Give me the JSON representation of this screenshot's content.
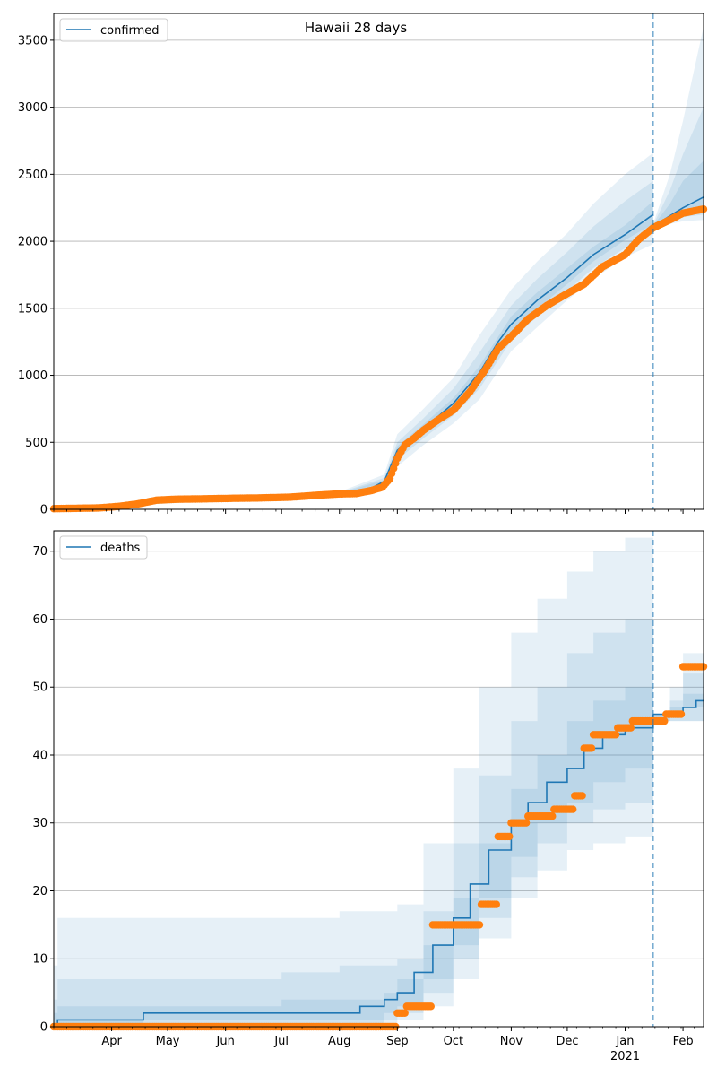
{
  "colors": {
    "model": "#1f77b4",
    "observed": "#ff7f0e",
    "band": "#1f77b4",
    "grid": "#b0b0b0"
  },
  "chart_data": [
    {
      "type": "line",
      "title": "Hawaii 28 days",
      "legend": {
        "label": "confirmed",
        "placement": "top-left"
      },
      "grid": "horizontal",
      "xlim": [
        "2020-03-01",
        "2021-02-12"
      ],
      "ylim": [
        0,
        3700
      ],
      "yticks": [
        0,
        500,
        1000,
        1500,
        2000,
        2500,
        3000,
        3500
      ],
      "forecast_start": "2021-01-16",
      "model_median": {
        "x": [
          "2020-03-01",
          "2020-04-01",
          "2020-05-01",
          "2020-06-01",
          "2020-07-01",
          "2020-07-20",
          "2020-08-01",
          "2020-08-15",
          "2020-08-25",
          "2020-09-01",
          "2020-09-15",
          "2020-10-01",
          "2020-10-15",
          "2020-10-25",
          "2020-11-01",
          "2020-11-15",
          "2020-12-01",
          "2020-12-15",
          "2021-01-01",
          "2021-01-16"
        ],
        "y": [
          5,
          20,
          70,
          82,
          88,
          100,
          115,
          135,
          210,
          440,
          600,
          790,
          1020,
          1250,
          1380,
          1560,
          1730,
          1900,
          2050,
          2200
        ]
      },
      "forecast_median": {
        "x": [
          "2021-01-16",
          "2021-01-25",
          "2021-02-01",
          "2021-02-12"
        ],
        "y": [
          2110,
          2190,
          2250,
          2330
        ]
      },
      "bands": [
        {
          "x": [
            "2020-03-01",
            "2020-08-01",
            "2020-08-25",
            "2020-09-01",
            "2020-09-15",
            "2020-10-01",
            "2020-10-15",
            "2020-11-01",
            "2020-11-15",
            "2020-12-01",
            "2020-12-15",
            "2021-01-01",
            "2021-01-16"
          ],
          "low": [
            0,
            110,
            170,
            320,
            480,
            640,
            820,
            1180,
            1360,
            1560,
            1720,
            1880,
            1980
          ],
          "high": [
            10,
            130,
            260,
            560,
            750,
            980,
            1300,
            1640,
            1850,
            2060,
            2280,
            2500,
            2660
          ]
        },
        {
          "x": [
            "2020-03-01",
            "2020-08-01",
            "2020-08-25",
            "2020-09-01",
            "2020-09-15",
            "2020-10-01",
            "2020-10-15",
            "2020-11-01",
            "2020-11-15",
            "2020-12-01",
            "2020-12-15",
            "2021-01-01",
            "2021-01-16"
          ],
          "low": [
            0,
            112,
            185,
            370,
            530,
            700,
            900,
            1260,
            1440,
            1630,
            1800,
            1950,
            2060
          ],
          "high": [
            8,
            124,
            235,
            500,
            680,
            900,
            1170,
            1520,
            1720,
            1920,
            2110,
            2300,
            2450
          ]
        },
        {
          "x": [
            "2020-03-01",
            "2020-08-01",
            "2020-08-25",
            "2020-09-01",
            "2020-09-15",
            "2020-10-01",
            "2020-10-15",
            "2020-11-01",
            "2020-11-15",
            "2020-12-01",
            "2020-12-15",
            "2021-01-01",
            "2021-01-16"
          ],
          "low": [
            2,
            114,
            195,
            405,
            565,
            750,
            970,
            1320,
            1500,
            1680,
            1850,
            2010,
            2130
          ],
          "high": [
            7,
            120,
            220,
            470,
            635,
            830,
            1070,
            1440,
            1620,
            1800,
            1960,
            2120,
            2300
          ]
        },
        {
          "x": [
            "2021-01-16",
            "2021-01-25",
            "2021-02-01",
            "2021-02-12"
          ],
          "low": [
            2090,
            2130,
            2150,
            2160
          ],
          "high": [
            2130,
            2500,
            2900,
            3600
          ]
        },
        {
          "x": [
            "2021-01-16",
            "2021-01-25",
            "2021-02-01",
            "2021-02-12"
          ],
          "low": [
            2095,
            2150,
            2180,
            2200
          ],
          "high": [
            2120,
            2380,
            2650,
            3000
          ]
        },
        {
          "x": [
            "2021-01-16",
            "2021-01-25",
            "2021-02-01",
            "2021-02-12"
          ],
          "low": [
            2100,
            2165,
            2210,
            2250
          ],
          "high": [
            2115,
            2280,
            2450,
            2600
          ]
        }
      ],
      "observed": {
        "x": [
          "2020-03-01",
          "2020-03-15",
          "2020-03-25",
          "2020-04-05",
          "2020-04-15",
          "2020-04-25",
          "2020-05-05",
          "2020-05-20",
          "2020-06-05",
          "2020-06-20",
          "2020-07-05",
          "2020-07-20",
          "2020-08-01",
          "2020-08-10",
          "2020-08-18",
          "2020-08-24",
          "2020-08-28",
          "2020-09-01",
          "2020-09-05",
          "2020-09-10",
          "2020-09-15",
          "2020-09-22",
          "2020-10-01",
          "2020-10-10",
          "2020-10-18",
          "2020-10-25",
          "2020-11-01",
          "2020-11-10",
          "2020-11-20",
          "2020-12-01",
          "2020-12-10",
          "2020-12-20",
          "2021-01-01",
          "2021-01-08",
          "2021-01-16",
          "2021-01-25",
          "2021-02-01",
          "2021-02-12"
        ],
        "y": [
          5,
          8,
          10,
          22,
          40,
          68,
          75,
          78,
          82,
          85,
          90,
          105,
          115,
          118,
          140,
          165,
          230,
          380,
          480,
          530,
          590,
          660,
          740,
          880,
          1040,
          1200,
          1290,
          1420,
          1520,
          1610,
          1680,
          1810,
          1900,
          2010,
          2100,
          2160,
          2210,
          2240
        ]
      }
    },
    {
      "type": "line",
      "legend": {
        "label": "deaths",
        "placement": "top-left"
      },
      "grid": "horizontal",
      "xlim": [
        "2020-03-01",
        "2021-02-12"
      ],
      "ylim": [
        0,
        73
      ],
      "yticks": [
        0,
        10,
        20,
        30,
        40,
        50,
        60,
        70
      ],
      "xticks": [
        "Apr",
        "May",
        "Jun",
        "Jul",
        "Aug",
        "Sep",
        "Oct",
        "Nov",
        "Dec",
        "Jan",
        "Feb"
      ],
      "xtick_dates": [
        "2020-04-01",
        "2020-05-01",
        "2020-06-01",
        "2020-07-01",
        "2020-08-01",
        "2020-09-01",
        "2020-10-01",
        "2020-11-01",
        "2020-12-01",
        "2021-01-01",
        "2021-02-01"
      ],
      "year_label": "2021",
      "forecast_start": "2021-01-16",
      "model_median": {
        "x": [
          "2020-03-01",
          "2020-03-03",
          "2020-04-18",
          "2020-08-12",
          "2020-08-25",
          "2020-09-01",
          "2020-09-10",
          "2020-09-20",
          "2020-10-01",
          "2020-10-10",
          "2020-10-20",
          "2020-11-01",
          "2020-11-10",
          "2020-11-20",
          "2020-12-01",
          "2020-12-10",
          "2020-12-20",
          "2021-01-01",
          "2021-01-16"
        ],
        "y": [
          0,
          1,
          2,
          3,
          4,
          5,
          8,
          12,
          16,
          21,
          26,
          30,
          33,
          36,
          38,
          41,
          43,
          44,
          46
        ]
      },
      "forecast_median": {
        "x": [
          "2021-01-16",
          "2021-01-25",
          "2021-02-01",
          "2021-02-08",
          "2021-02-12"
        ],
        "y": [
          46,
          46,
          47,
          48,
          48
        ]
      },
      "bands": [
        {
          "x": [
            "2020-03-01",
            "2020-03-03",
            "2020-04-18",
            "2020-07-01",
            "2020-08-01",
            "2020-08-25",
            "2020-09-01",
            "2020-09-15",
            "2020-10-01",
            "2020-10-15",
            "2020-11-01",
            "2020-11-15",
            "2020-12-01",
            "2020-12-15",
            "2021-01-01",
            "2021-01-16"
          ],
          "low": [
            0,
            0,
            0,
            0,
            0,
            0,
            1,
            3,
            7,
            13,
            19,
            23,
            26,
            27,
            28,
            28
          ],
          "high": [
            9,
            16,
            16,
            16,
            17,
            17,
            18,
            27,
            38,
            50,
            58,
            63,
            67,
            70,
            72,
            73
          ]
        },
        {
          "x": [
            "2020-03-01",
            "2020-03-03",
            "2020-04-18",
            "2020-07-01",
            "2020-08-01",
            "2020-08-25",
            "2020-09-01",
            "2020-09-15",
            "2020-10-01",
            "2020-10-15",
            "2020-11-01",
            "2020-11-15",
            "2020-12-01",
            "2020-12-15",
            "2021-01-01",
            "2021-01-16"
          ],
          "low": [
            0,
            0,
            0,
            0,
            0,
            1,
            2,
            5,
            10,
            16,
            22,
            27,
            30,
            32,
            33,
            34
          ],
          "high": [
            4,
            7,
            7,
            8,
            9,
            9,
            10,
            17,
            27,
            37,
            45,
            50,
            55,
            58,
            60,
            61
          ]
        },
        {
          "x": [
            "2020-03-01",
            "2020-03-03",
            "2020-04-18",
            "2020-07-01",
            "2020-08-01",
            "2020-08-25",
            "2020-09-01",
            "2020-09-15",
            "2020-10-01",
            "2020-10-15",
            "2020-11-01",
            "2020-11-15",
            "2020-12-01",
            "2020-12-15",
            "2021-01-01",
            "2021-01-16"
          ],
          "low": [
            0,
            0,
            1,
            1,
            1,
            2,
            3,
            7,
            12,
            19,
            25,
            30,
            33,
            36,
            38,
            39
          ],
          "high": [
            2,
            3,
            3,
            4,
            4,
            5,
            7,
            12,
            19,
            27,
            35,
            40,
            45,
            48,
            50,
            52
          ]
        },
        {
          "x": [
            "2021-01-16",
            "2021-01-25",
            "2021-02-01",
            "2021-02-12"
          ],
          "low": [
            45,
            45,
            45,
            45
          ],
          "high": [
            46,
            50,
            55,
            60
          ]
        },
        {
          "x": [
            "2021-01-16",
            "2021-01-25",
            "2021-02-01",
            "2021-02-12"
          ],
          "low": [
            45,
            45,
            45,
            45
          ],
          "high": [
            46,
            48,
            52,
            56
          ]
        },
        {
          "x": [
            "2021-01-16",
            "2021-01-25",
            "2021-02-01",
            "2021-02-12"
          ],
          "low": [
            45,
            46,
            47,
            47
          ],
          "high": [
            46,
            47,
            49,
            51
          ]
        }
      ],
      "observed": {
        "x": [
          "2020-03-01",
          "2020-04-01",
          "2020-05-01",
          "2020-06-01",
          "2020-07-01",
          "2020-08-01",
          "2020-08-31",
          "2020-09-01",
          "2020-09-06",
          "2020-09-12",
          "2020-09-16",
          "2020-09-20",
          "2020-09-27",
          "2020-10-06",
          "2020-10-11",
          "2020-10-16",
          "2020-10-20",
          "2020-10-25",
          "2020-11-01",
          "2020-11-10",
          "2020-11-17",
          "2020-11-24",
          "2020-12-01",
          "2020-12-05",
          "2020-12-10",
          "2020-12-15",
          "2020-12-22",
          "2020-12-28",
          "2021-01-05",
          "2021-01-14",
          "2021-01-20",
          "2021-01-23",
          "2021-02-01",
          "2021-02-12"
        ],
        "y": [
          0,
          0,
          0,
          0,
          0,
          0,
          0,
          2,
          3,
          3,
          3,
          15,
          15,
          15,
          15,
          18,
          18,
          28,
          30,
          31,
          31,
          32,
          32,
          34,
          41,
          43,
          43,
          44,
          45,
          45,
          45,
          46,
          53,
          53
        ]
      }
    }
  ]
}
